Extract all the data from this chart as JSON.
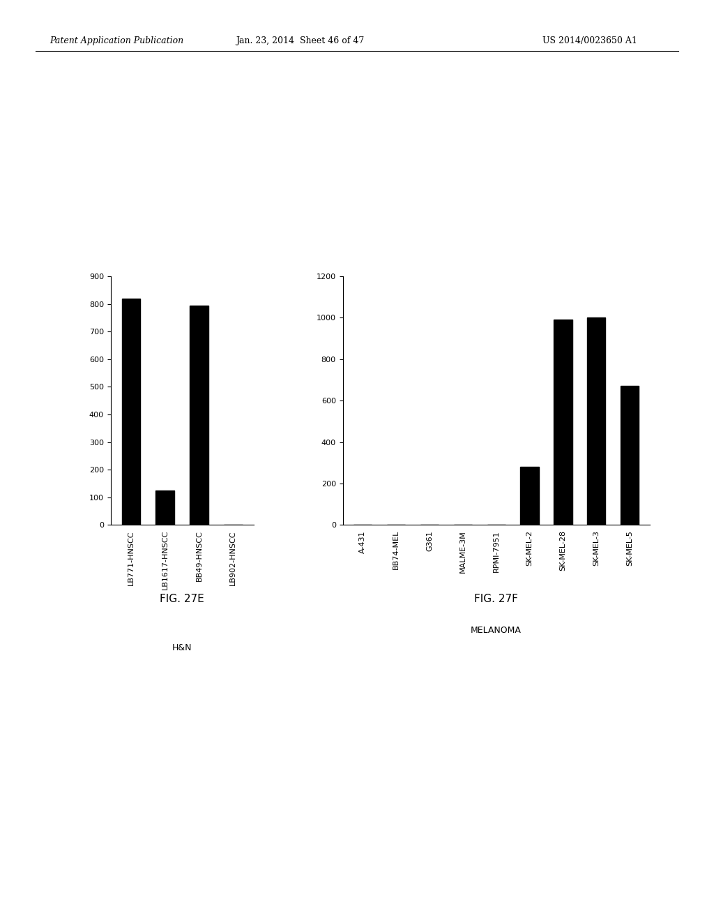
{
  "header_left": "Patent Application Publication",
  "header_center": "Jan. 23, 2014  Sheet 46 of 47",
  "header_right": "US 2014/0023650 A1",
  "fig_e": {
    "title": "FIG. 27E",
    "categories": [
      "LB771-HNSCC",
      "LB1617-HNSCC",
      "BB49-HNSCC",
      "LB902-HNSCC"
    ],
    "values": [
      820,
      125,
      795,
      0
    ],
    "xlabel": "H&N",
    "ylim": [
      0,
      900
    ],
    "yticks": [
      0,
      100,
      200,
      300,
      400,
      500,
      600,
      700,
      800,
      900
    ]
  },
  "fig_f": {
    "title": "FIG. 27F",
    "categories": [
      "A-431",
      "BB74-MEL",
      "G361",
      "MALME-3M",
      "RPMI-7951",
      "SK-MEL-2",
      "SK-MEL-28",
      "SK-MEL-3",
      "SK-MEL-5"
    ],
    "values": [
      0,
      0,
      0,
      0,
      0,
      280,
      990,
      1000,
      670
    ],
    "xlabel": "MELANOMA",
    "ylim": [
      0,
      1200
    ],
    "yticks": [
      0,
      200,
      400,
      600,
      800,
      1000,
      1200
    ]
  },
  "bar_color": "#000000",
  "bar_width": 0.55,
  "background_color": "#ffffff",
  "font_size_ticks": 8,
  "font_size_xlabel": 9,
  "font_size_title": 11,
  "font_size_header": 9
}
